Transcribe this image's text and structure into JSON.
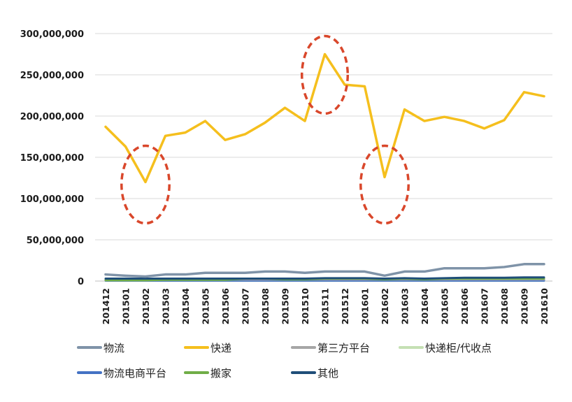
{
  "chart_data": {
    "type": "line",
    "x": [
      "201412",
      "201501",
      "201502",
      "201503",
      "201504",
      "201505",
      "201506",
      "201507",
      "201508",
      "201509",
      "201510",
      "201511",
      "201512",
      "201601",
      "201602",
      "201603",
      "201604",
      "201605",
      "201606",
      "201607",
      "201608",
      "201609",
      "201610"
    ],
    "ylim": [
      0,
      300000000
    ],
    "yticks": [
      0,
      50000000,
      100000000,
      150000000,
      200000000,
      250000000,
      300000000
    ],
    "ytick_labels": [
      "0",
      "50,000,000",
      "100,000,000",
      "150,000,000",
      "200,000,000",
      "250,000,000",
      "300,000,000"
    ],
    "grid": true,
    "legend_position": "bottom",
    "series": [
      {
        "name": "物流",
        "color": "#7f93a8",
        "values": [
          8000000,
          6500000,
          5500000,
          8000000,
          8000000,
          10000000,
          10000000,
          10000000,
          11500000,
          11500000,
          10000000,
          11500000,
          11500000,
          11500000,
          6500000,
          11500000,
          11500000,
          15500000,
          15500000,
          15500000,
          17000000,
          20500000,
          20500000
        ]
      },
      {
        "name": "快递",
        "color": "#f5bf1d",
        "values": [
          187000000,
          163000000,
          120000000,
          176000000,
          180000000,
          194000000,
          171000000,
          178000000,
          192000000,
          210000000,
          194000000,
          275000000,
          238000000,
          236000000,
          126000000,
          208000000,
          194000000,
          199000000,
          194000000,
          185000000,
          195000000,
          229000000,
          224000000
        ]
      },
      {
        "name": "第三方平台",
        "color": "#a6a6a6",
        "values": [
          2000000,
          2000000,
          2000000,
          2000000,
          2000000,
          2000000,
          2000000,
          2000000,
          2000000,
          2000000,
          2000000,
          2000000,
          2000000,
          2000000,
          2000000,
          2000000,
          2000000,
          2000000,
          2000000,
          2000000,
          2000000,
          2000000,
          2000000
        ]
      },
      {
        "name": "快递柜/代收点",
        "color": "#c5e0b4",
        "values": [
          300000,
          300000,
          300000,
          300000,
          300000,
          300000,
          300000,
          300000,
          300000,
          300000,
          300000,
          300000,
          300000,
          300000,
          300000,
          300000,
          300000,
          300000,
          300000,
          300000,
          300000,
          300000,
          300000
        ]
      },
      {
        "name": "物流电商平台",
        "color": "#4472c4",
        "values": [
          500000,
          500000,
          500000,
          500000,
          500000,
          500000,
          500000,
          500000,
          500000,
          500000,
          500000,
          500000,
          500000,
          500000,
          500000,
          500000,
          500000,
          500000,
          500000,
          500000,
          500000,
          500000,
          500000
        ]
      },
      {
        "name": "搬家",
        "color": "#70ad47",
        "values": [
          1000000,
          1000000,
          1000000,
          1500000,
          1500000,
          1500000,
          1500000,
          3000000,
          3000000,
          2000000,
          2000000,
          3000000,
          3000000,
          3000000,
          2000000,
          3000000,
          2000000,
          3000000,
          3000000,
          3000000,
          3000000,
          3000000,
          3000000
        ]
      },
      {
        "name": "其他",
        "color": "#1f4e79",
        "values": [
          3000000,
          3000000,
          3000000,
          3000000,
          3000000,
          3000000,
          3000000,
          3000000,
          3000000,
          3000000,
          3000000,
          3500000,
          3500000,
          3500000,
          3000000,
          3500000,
          3000000,
          3500000,
          4000000,
          4000000,
          4000000,
          4500000,
          4500000
        ]
      }
    ],
    "annotations": [
      {
        "type": "ellipse",
        "style": "dashed",
        "color": "#d9472b",
        "x": "201502",
        "y": 117000000,
        "x_halfwidth_months": 1.2,
        "y_halfheight": 47000000
      },
      {
        "type": "ellipse",
        "style": "dashed",
        "color": "#d9472b",
        "x": "201511",
        "y": 250000000,
        "x_halfwidth_months": 1.15,
        "y_halfheight": 47000000
      },
      {
        "type": "ellipse",
        "style": "dashed",
        "color": "#d9472b",
        "x": "201602",
        "y": 117000000,
        "x_halfwidth_months": 1.2,
        "y_halfheight": 47000000
      }
    ]
  },
  "legend": {
    "items": [
      {
        "label": "物流",
        "color": "#7f93a8"
      },
      {
        "label": "快递",
        "color": "#f5bf1d"
      },
      {
        "label": "第三方平台",
        "color": "#a6a6a6"
      },
      {
        "label": "快递柜/代收点",
        "color": "#c5e0b4"
      },
      {
        "label": "物流电商平台",
        "color": "#4472c4"
      },
      {
        "label": "搬家",
        "color": "#70ad47"
      },
      {
        "label": "其他",
        "color": "#1f4e79"
      }
    ]
  }
}
